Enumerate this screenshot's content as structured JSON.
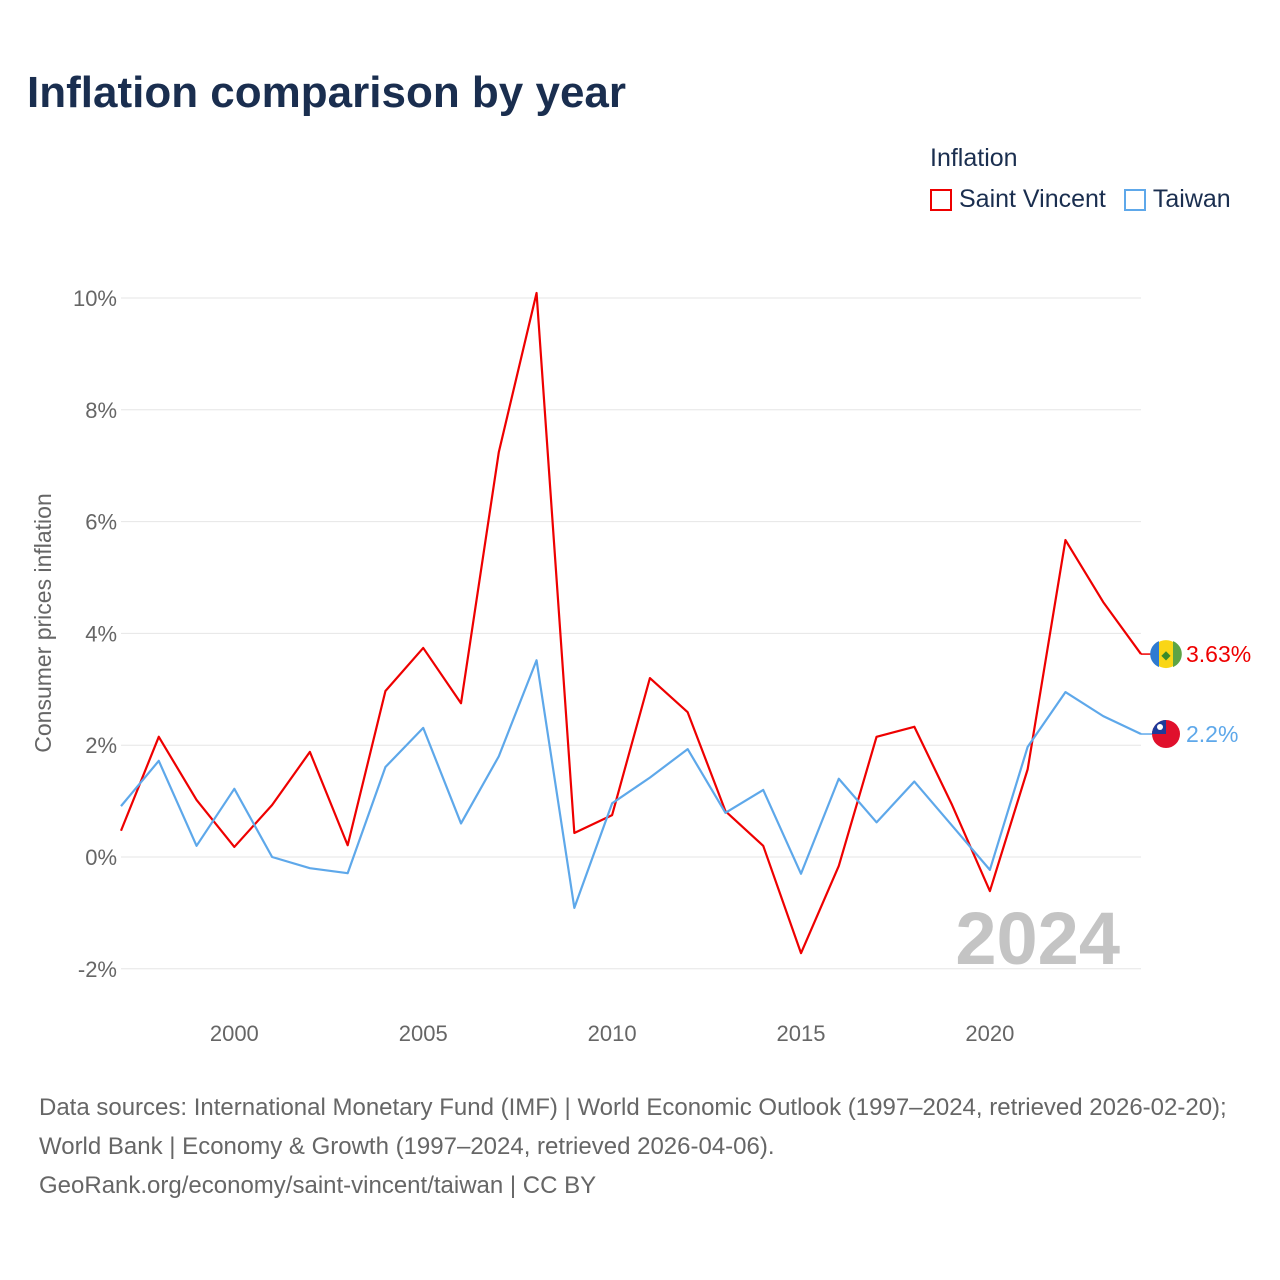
{
  "title": "Inflation comparison by year",
  "legend": {
    "title": "Inflation",
    "items": [
      {
        "name": "Saint Vincent",
        "color": "#ee0000"
      },
      {
        "name": "Taiwan",
        "color": "#5ea8ea"
      }
    ]
  },
  "chart_data": {
    "type": "line",
    "title": "Inflation comparison by year",
    "xlabel": "",
    "ylabel": "Consumer prices inflation",
    "xlim": [
      1997,
      2024
    ],
    "ylim": [
      -2.6,
      10.3
    ],
    "yticks": [
      -2,
      0,
      2,
      4,
      6,
      8,
      10
    ],
    "ytick_labels": [
      "-2%",
      "0%",
      "2%",
      "4%",
      "6%",
      "8%",
      "10%"
    ],
    "xticks": [
      2000,
      2005,
      2010,
      2015,
      2020
    ],
    "xtick_labels": [
      "2000",
      "2005",
      "2010",
      "2015",
      "2020"
    ],
    "grid": true,
    "legend_position": "top-right",
    "x": [
      1997,
      1998,
      1999,
      2000,
      2001,
      2002,
      2003,
      2004,
      2005,
      2006,
      2007,
      2008,
      2009,
      2010,
      2011,
      2012,
      2013,
      2014,
      2015,
      2016,
      2017,
      2018,
      2019,
      2020,
      2021,
      2022,
      2023,
      2024
    ],
    "series": [
      {
        "name": "Saint Vincent",
        "color": "#ee0000",
        "end_label": "3.63%",
        "values": [
          0.47,
          2.15,
          1.02,
          0.18,
          0.93,
          1.88,
          0.21,
          2.97,
          3.74,
          2.75,
          7.24,
          10.09,
          0.43,
          0.75,
          3.2,
          2.59,
          0.82,
          0.2,
          -1.72,
          -0.16,
          2.15,
          2.33,
          0.93,
          -0.61,
          1.57,
          5.67,
          4.56,
          3.63
        ]
      },
      {
        "name": "Taiwan",
        "color": "#5ea8ea",
        "end_label": "2.2%",
        "values": [
          0.91,
          1.72,
          0.2,
          1.22,
          0.0,
          -0.2,
          -0.29,
          1.61,
          2.31,
          0.6,
          1.8,
          3.52,
          -0.91,
          0.96,
          1.42,
          1.93,
          0.79,
          1.2,
          -0.3,
          1.4,
          0.62,
          1.35,
          0.56,
          -0.23,
          1.97,
          2.95,
          2.52,
          2.2
        ]
      }
    ],
    "annotation": "2024"
  },
  "source": {
    "line1": "Data sources: International Monetary Fund (IMF) | World Economic Outlook (1997–2024, retrieved 2026-02-20); World Bank | Economy & Growth (1997–2024, retrieved 2026-04-06).",
    "line2": "GeoRank.org/economy/saint-vincent/taiwan | CC BY"
  }
}
